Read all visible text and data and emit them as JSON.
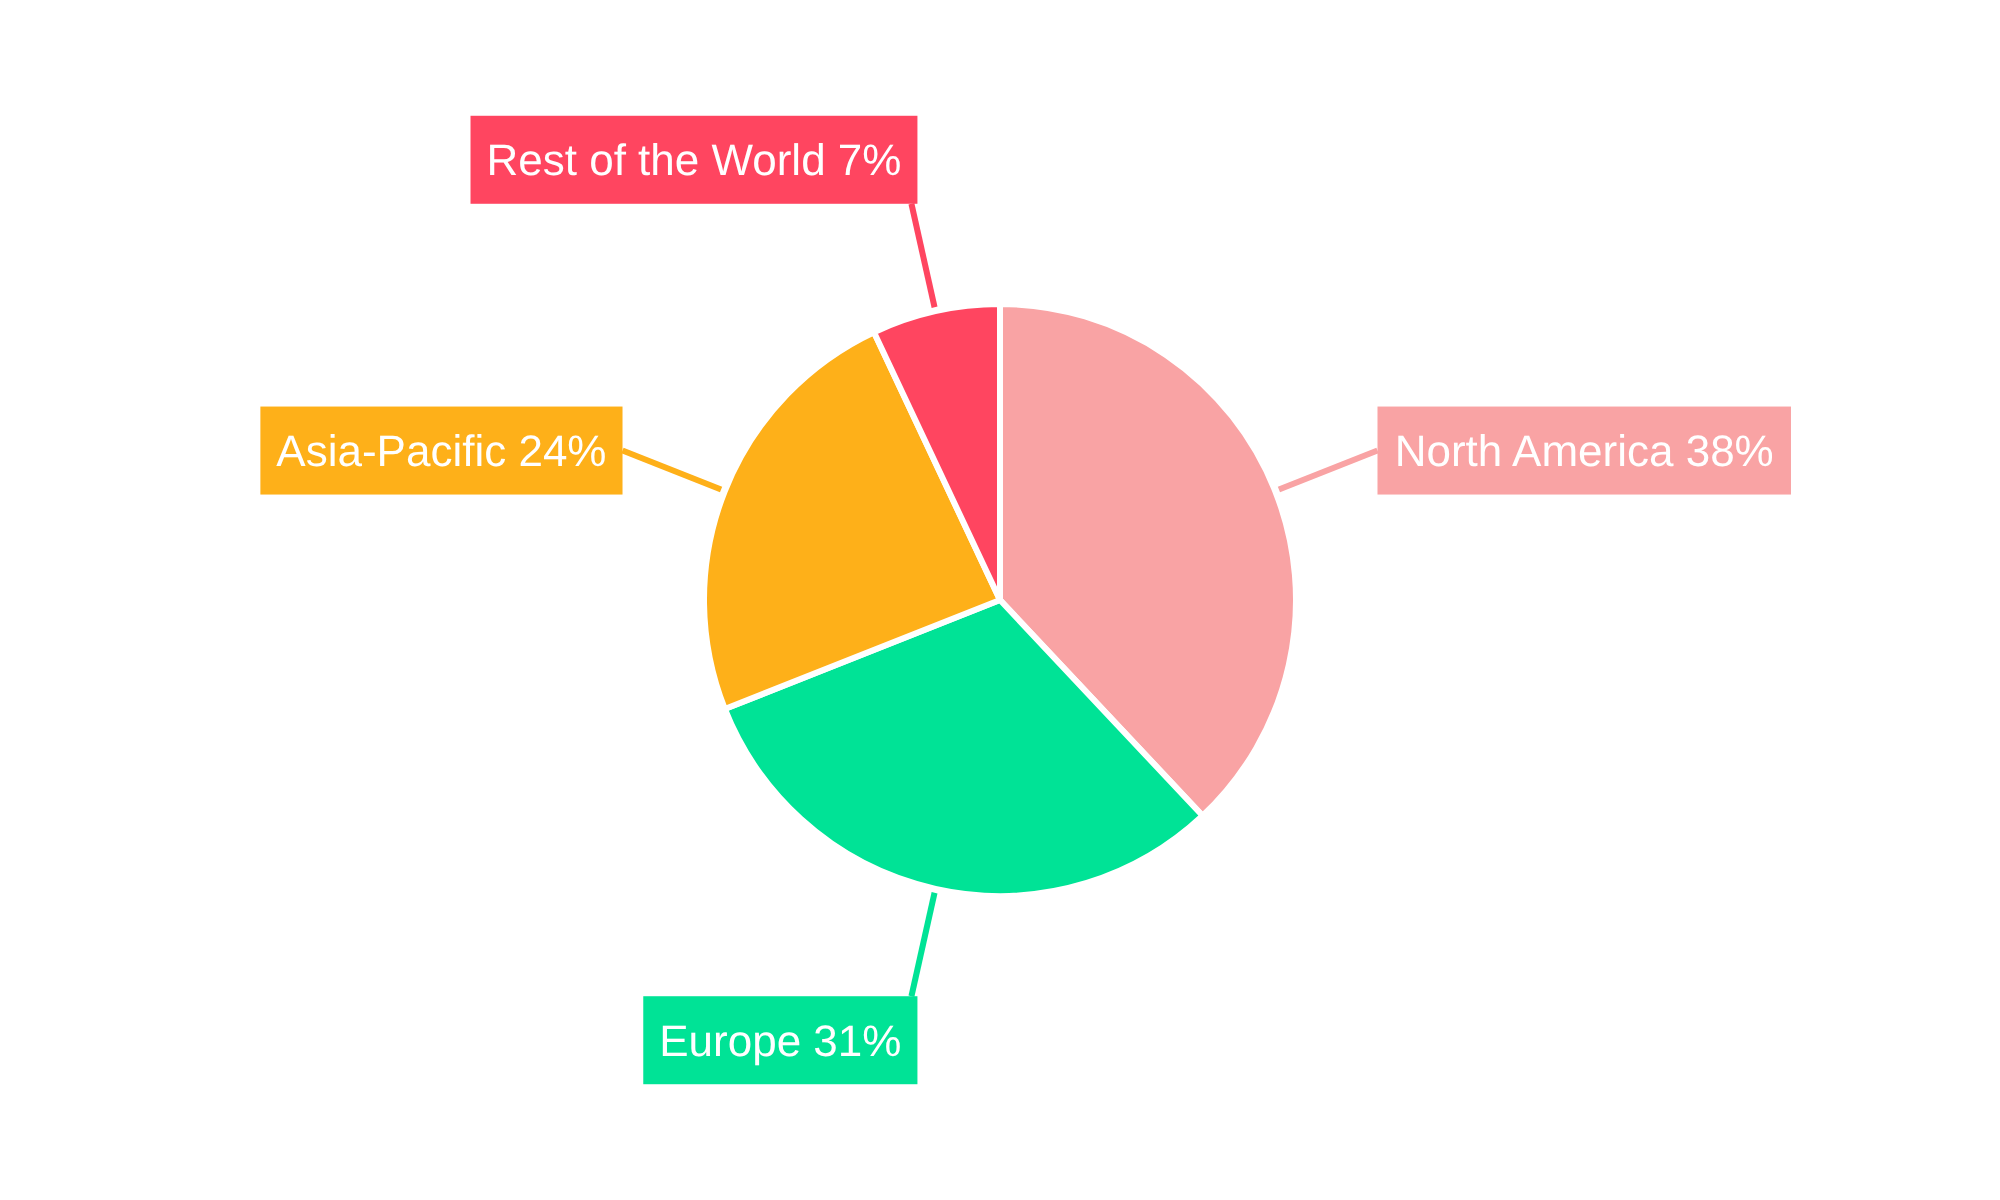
{
  "chart_data": {
    "type": "pie",
    "categories": [
      "North America",
      "Europe",
      "Asia-Pacific",
      "Rest of the World"
    ],
    "values": [
      38,
      31,
      24,
      7
    ],
    "value_labels": [
      "38%",
      "31%",
      "24%",
      "7%"
    ],
    "colors": [
      "#f9a3a4",
      "#00e396",
      "#feb019",
      "#ff4560"
    ]
  }
}
